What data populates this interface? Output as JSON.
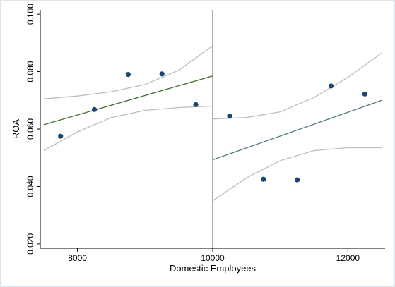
{
  "chart_data": {
    "type": "scatter",
    "title": "",
    "xlabel": "Domestic Employees",
    "ylabel": "ROA",
    "xlim": [
      7450,
      12550
    ],
    "ylim": [
      0.0185,
      0.1015
    ],
    "grid": false,
    "legend": "none",
    "xticks": [
      8000,
      10000,
      12000
    ],
    "xtick_labels": [
      "8000",
      "10000",
      "12000"
    ],
    "yticks": [
      0.02,
      0.04,
      0.06,
      0.08,
      0.1
    ],
    "ytick_labels": [
      "0.020",
      "0.040",
      "0.060",
      "0.080",
      "0.100"
    ],
    "cutoff": 10000,
    "points": [
      {
        "x": 7750,
        "y": 0.0575
      },
      {
        "x": 8250,
        "y": 0.0668
      },
      {
        "x": 8750,
        "y": 0.079
      },
      {
        "x": 9250,
        "y": 0.0792
      },
      {
        "x": 9750,
        "y": 0.0685
      },
      {
        "x": 10250,
        "y": 0.0645
      },
      {
        "x": 10750,
        "y": 0.0425
      },
      {
        "x": 11250,
        "y": 0.0423
      },
      {
        "x": 11750,
        "y": 0.075
      },
      {
        "x": 12250,
        "y": 0.0722
      }
    ],
    "fit_lines": [
      {
        "x": [
          7500,
          10000
        ],
        "y": [
          0.0615,
          0.0785
        ]
      },
      {
        "x": [
          10000,
          12500
        ],
        "y": [
          0.0493,
          0.07
        ]
      }
    ],
    "ci_upper": [
      {
        "x": [
          7500,
          8000,
          8500,
          9000,
          9500,
          10000
        ],
        "y": [
          0.0705,
          0.0715,
          0.073,
          0.0755,
          0.0805,
          0.089
        ]
      },
      {
        "x": [
          10000,
          10500,
          11000,
          11500,
          12000,
          12500
        ],
        "y": [
          0.0635,
          0.064,
          0.066,
          0.071,
          0.078,
          0.0865
        ]
      }
    ],
    "ci_lower": [
      {
        "x": [
          7500,
          8000,
          8500,
          9000,
          9500,
          10000
        ],
        "y": [
          0.0525,
          0.059,
          0.064,
          0.0665,
          0.0675,
          0.068
        ]
      },
      {
        "x": [
          10000,
          10500,
          11000,
          11500,
          12000,
          12500
        ],
        "y": [
          0.035,
          0.043,
          0.049,
          0.0525,
          0.0535,
          0.0535
        ]
      }
    ],
    "colors": {
      "point": "#1a476f",
      "fit_left": "#3f6b2a",
      "fit_right": "#4f7a80",
      "ci": "#bdbdbd",
      "cutoff_line": "#777777",
      "axis": "#000000",
      "frame": "#dce4ea"
    }
  }
}
